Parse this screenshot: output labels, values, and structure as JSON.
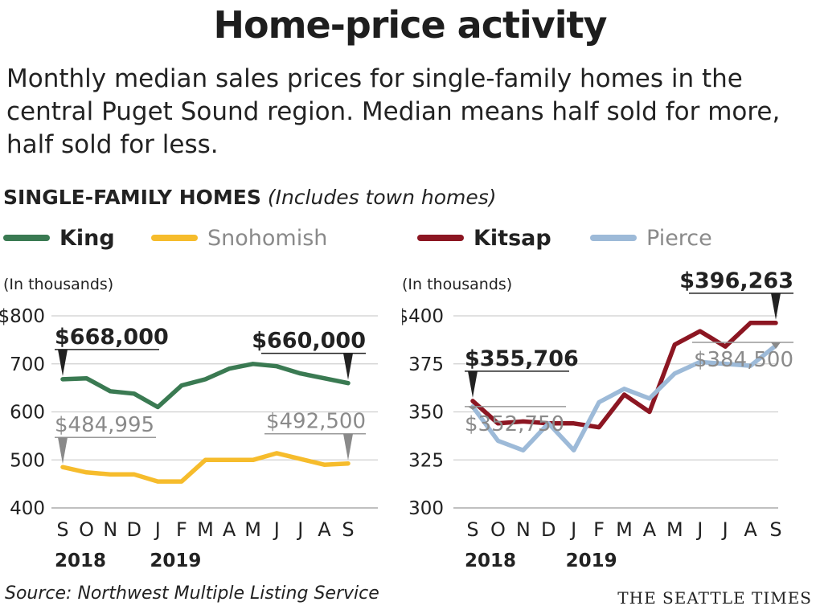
{
  "title": "Home-price activity",
  "subtitle": "Monthly median sales prices for single-family homes in the central Puget Sound region. Median means half sold for more, half sold for less.",
  "section_title": "SINGLE-FAMILY HOMES",
  "section_note": "(Includes town homes)",
  "legend": [
    {
      "name": "King",
      "color": "#3a7a52",
      "bold": true
    },
    {
      "name": "Snohomish",
      "color": "#f6bc2c",
      "bold": false
    },
    {
      "name": "Kitsap",
      "color": "#8c1622",
      "bold": true
    },
    {
      "name": "Pierce",
      "color": "#9dbad8",
      "bold": false
    }
  ],
  "source": "Source: Northwest Multiple Listing Service",
  "brand": "THE SEATTLE TIMES",
  "chart_data": [
    {
      "type": "line",
      "units_note": "(In thousands)",
      "months": [
        "S",
        "O",
        "N",
        "D",
        "J",
        "F",
        "M",
        "A",
        "M",
        "J",
        "J",
        "A",
        "S"
      ],
      "years": [
        {
          "label": "2018",
          "month_index": 0
        },
        {
          "label": "2019",
          "month_index": 4
        }
      ],
      "yticks": [
        {
          "value": 400,
          "label": "400"
        },
        {
          "value": 500,
          "label": "500"
        },
        {
          "value": 600,
          "label": "600"
        },
        {
          "value": 700,
          "label": "700"
        },
        {
          "value": 800,
          "label": "$800"
        }
      ],
      "ylim": [
        400,
        800
      ],
      "series": [
        {
          "name": "King",
          "color": "#3a7a52",
          "values": [
            668,
            670,
            643,
            638,
            610,
            655,
            668,
            690,
            700,
            695,
            680,
            670,
            660
          ]
        },
        {
          "name": "Snohomish",
          "color": "#f6bc2c",
          "values": [
            485,
            474,
            470,
            470,
            455,
            455,
            500,
            500,
            500,
            514,
            502,
            490,
            492.5
          ]
        }
      ],
      "annotations": [
        {
          "text": "$668,000",
          "series": 0,
          "index": 0,
          "style": "bold",
          "color": "#222222"
        },
        {
          "text": "$660,000",
          "series": 0,
          "index": 12,
          "style": "bold",
          "color": "#222222"
        },
        {
          "text": "$484,995",
          "series": 1,
          "index": 0,
          "style": "light",
          "color": "#8a8a8a"
        },
        {
          "text": "$492,500",
          "series": 1,
          "index": 12,
          "style": "light",
          "color": "#8a8a8a"
        }
      ]
    },
    {
      "type": "line",
      "units_note": "(In thousands)",
      "months": [
        "S",
        "O",
        "N",
        "D",
        "J",
        "F",
        "M",
        "A",
        "M",
        "J",
        "J",
        "A",
        "S"
      ],
      "years": [
        {
          "label": "2018",
          "month_index": 0
        },
        {
          "label": "2019",
          "month_index": 4
        }
      ],
      "yticks": [
        {
          "value": 300,
          "label": "300"
        },
        {
          "value": 325,
          "label": "325"
        },
        {
          "value": 350,
          "label": "350"
        },
        {
          "value": 375,
          "label": "375"
        },
        {
          "value": 400,
          "label": "$400"
        }
      ],
      "ylim": [
        300,
        400
      ],
      "series": [
        {
          "name": "Kitsap",
          "color": "#8c1622",
          "values": [
            355.7,
            344,
            345,
            344,
            344,
            342,
            359,
            350,
            385,
            392,
            384,
            396.3,
            396.3
          ]
        },
        {
          "name": "Pierce",
          "color": "#9dbad8",
          "values": [
            352.75,
            335,
            330,
            344,
            330,
            355,
            362,
            357,
            370,
            376,
            375,
            374,
            384.5
          ]
        }
      ],
      "annotations": [
        {
          "text": "$355,706",
          "series": 0,
          "index": 0,
          "style": "bold",
          "color": "#222222"
        },
        {
          "text": "$396,263",
          "series": 0,
          "index": 12,
          "style": "bold",
          "color": "#222222"
        },
        {
          "text": "$352,750",
          "series": 1,
          "index": 0,
          "style": "light",
          "color": "#8a8a8a"
        },
        {
          "text": "$384,500",
          "series": 1,
          "index": 12,
          "style": "light",
          "color": "#8a8a8a"
        }
      ]
    }
  ]
}
